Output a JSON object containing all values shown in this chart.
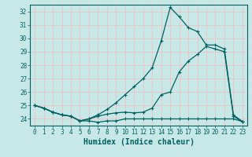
{
  "xlabel": "Humidex (Indice chaleur)",
  "bg_color": "#c8e8e8",
  "grid_color": "#e8c8c8",
  "line_color": "#006060",
  "x": [
    0,
    1,
    2,
    3,
    4,
    5,
    6,
    7,
    8,
    9,
    10,
    11,
    12,
    13,
    14,
    15,
    16,
    17,
    18,
    19,
    20,
    21,
    22,
    23
  ],
  "line1": [
    25.0,
    24.8,
    24.5,
    24.3,
    24.2,
    23.85,
    23.85,
    23.75,
    23.85,
    23.85,
    24.0,
    24.0,
    24.0,
    24.0,
    24.0,
    24.0,
    24.0,
    24.0,
    24.0,
    24.0,
    24.0,
    24.0,
    24.0,
    23.8
  ],
  "line2": [
    25.0,
    24.8,
    24.5,
    24.3,
    24.2,
    23.85,
    24.0,
    24.2,
    24.35,
    24.45,
    24.5,
    24.45,
    24.5,
    24.8,
    25.8,
    26.0,
    27.5,
    28.3,
    28.8,
    29.4,
    29.2,
    29.0,
    24.2,
    23.8
  ],
  "line3": [
    25.0,
    24.8,
    24.5,
    24.3,
    24.2,
    23.85,
    24.0,
    24.3,
    24.7,
    25.2,
    25.8,
    26.4,
    27.0,
    27.8,
    29.8,
    32.3,
    31.6,
    30.8,
    30.5,
    29.5,
    29.5,
    29.2,
    24.3,
    23.8
  ],
  "ylim": [
    23.5,
    32.5
  ],
  "xlim": [
    -0.5,
    23.5
  ],
  "yticks": [
    24,
    25,
    26,
    27,
    28,
    29,
    30,
    31,
    32
  ],
  "xticks": [
    0,
    1,
    2,
    3,
    4,
    5,
    6,
    7,
    8,
    9,
    10,
    11,
    12,
    13,
    14,
    15,
    16,
    17,
    18,
    19,
    20,
    21,
    22,
    23
  ],
  "tick_fontsize": 5.5,
  "label_fontsize": 7.0
}
